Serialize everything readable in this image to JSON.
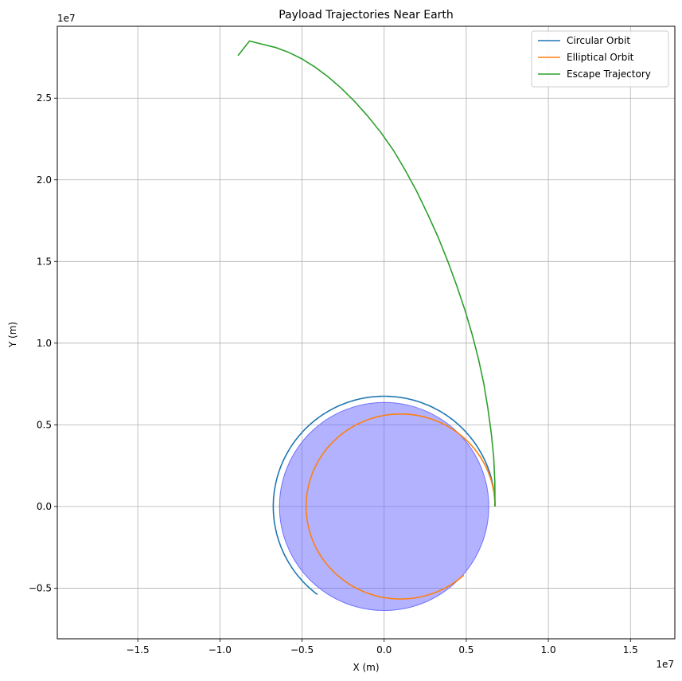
{
  "chart_data": {
    "type": "line",
    "title": "Payload Trajectories Near Earth",
    "xlabel": "X (m)",
    "ylabel": "Y (m)",
    "x_offset_text": "1e7",
    "y_offset_text": "1e7",
    "xlim": [
      -1.99,
      1.77
    ],
    "ylim": [
      -0.81,
      2.94
    ],
    "xticks": [
      -1.5,
      -1.0,
      -0.5,
      0.0,
      0.5,
      1.0,
      1.5
    ],
    "xtick_labels": [
      "−1.5",
      "−1.0",
      "−0.5",
      "0.0",
      "0.5",
      "1.0",
      "1.5"
    ],
    "yticks": [
      -0.5,
      0.0,
      0.5,
      1.0,
      1.5,
      2.0,
      2.5
    ],
    "ytick_labels": [
      "−0.5",
      "0.0",
      "0.5",
      "1.0",
      "1.5",
      "2.0",
      "2.5"
    ],
    "grid": true,
    "legend_position": "top-right",
    "earth": {
      "center": [
        0,
        0
      ],
      "radius": 0.6371,
      "color": "#6666ff",
      "alpha": 0.5
    },
    "series": [
      {
        "name": "Circular Orbit",
        "color": "#1f77b4",
        "kind": "circle",
        "radius": 0.675,
        "theta_start_deg": 0,
        "theta_end_deg": 233.5
      },
      {
        "name": "Elliptical Orbit",
        "color": "#ff7f0e",
        "kind": "ellipse",
        "semi_major": 0.575,
        "eccentricity": 0.174,
        "perigee_x": 0.675,
        "theta_start_deg": 0,
        "theta_end_deg": 312
      },
      {
        "name": "Escape Trajectory",
        "color": "#2ca02c",
        "kind": "polyline",
        "x": [
          0.675,
          0.674,
          0.667,
          0.652,
          0.632,
          0.607,
          0.575,
          0.537,
          0.493,
          0.443,
          0.388,
          0.328,
          0.265,
          0.198,
          0.128,
          0.057,
          -0.02,
          -0.1,
          -0.18,
          -0.26,
          -0.34,
          -0.42,
          -0.5,
          -0.58,
          -0.66,
          -0.74,
          -0.82,
          -0.89
        ],
        "y": [
          0.0,
          0.15,
          0.3,
          0.45,
          0.6,
          0.75,
          0.9,
          1.05,
          1.2,
          1.35,
          1.5,
          1.65,
          1.79,
          1.93,
          2.06,
          2.18,
          2.29,
          2.39,
          2.48,
          2.56,
          2.63,
          2.69,
          2.74,
          2.78,
          2.81,
          2.83,
          2.85,
          2.76
        ]
      }
    ]
  }
}
